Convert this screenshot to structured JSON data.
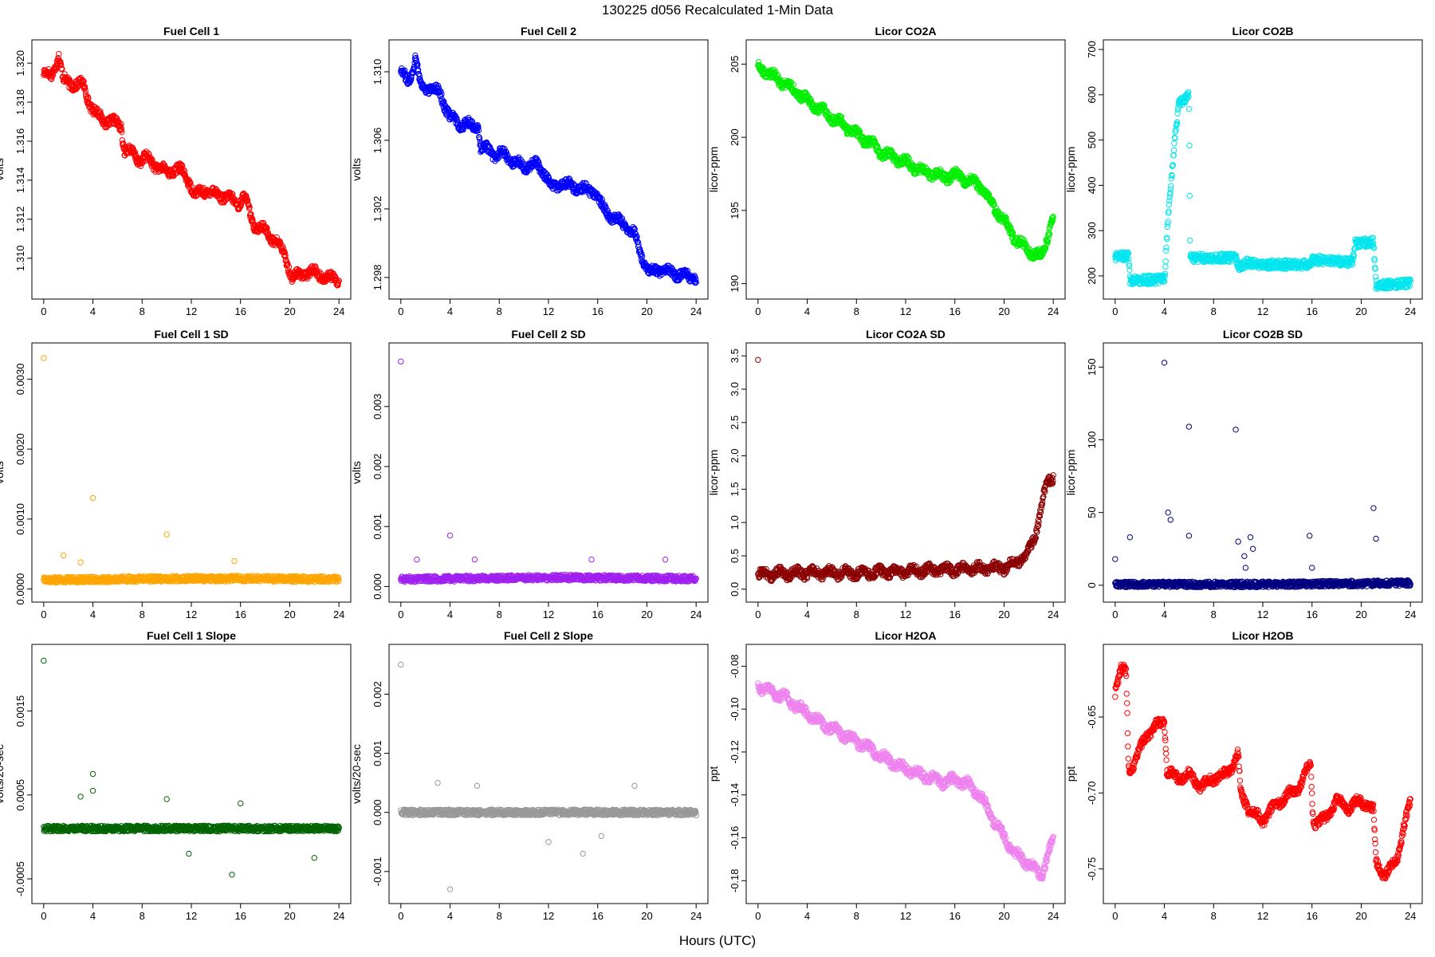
{
  "page": {
    "title": "130225   d056   Recalculated 1-Min Data",
    "xlabel": "Hours (UTC)"
  },
  "chart_data": [
    {
      "type": "scatter",
      "title": "Fuel Cell 1",
      "ylabel": "volts",
      "color": "#ff0000",
      "xlim": [
        0,
        24
      ],
      "ylim": [
        1.3084,
        1.3207
      ],
      "xticks": [
        "0",
        "4",
        "8",
        "12",
        "16",
        "20",
        "24"
      ],
      "yticks": [
        "1.310",
        "1.312",
        "1.314",
        "1.316",
        "1.318",
        "1.320"
      ],
      "series": [
        {
          "name": "trend",
          "x": [
            0,
            0.6,
            1.0,
            1.2,
            1.6,
            2.5,
            3.2,
            3.6,
            4.0,
            4.8,
            5.5,
            6.3,
            6.5,
            7.0,
            7.8,
            8.2,
            9.0,
            10.0,
            11.0,
            11.8,
            12.3,
            13.0,
            14.0,
            15.0,
            15.8,
            16.3,
            17.0,
            18.0,
            19.0,
            19.7,
            20.2,
            21.0,
            22.0,
            23.0,
            24.0
          ],
          "y": [
            1.3195,
            1.3193,
            1.32,
            1.3205,
            1.3191,
            1.3189,
            1.3189,
            1.3182,
            1.3176,
            1.3171,
            1.317,
            1.3168,
            1.3156,
            1.3155,
            1.315,
            1.3152,
            1.3148,
            1.3144,
            1.3146,
            1.314,
            1.3132,
            1.3135,
            1.3133,
            1.3131,
            1.3128,
            1.3132,
            1.3118,
            1.3114,
            1.3108,
            1.31,
            1.309,
            1.3092,
            1.3093,
            1.309,
            1.3089
          ]
        }
      ]
    },
    {
      "type": "scatter",
      "title": "Fuel Cell 2",
      "ylabel": "volts",
      "color": "#0000ff",
      "xlim": [
        0,
        24
      ],
      "ylim": [
        1.2973,
        1.3113
      ],
      "xticks": [
        "0",
        "4",
        "8",
        "12",
        "16",
        "20",
        "24"
      ],
      "yticks": [
        "1.298",
        "1.302",
        "1.306",
        "1.310"
      ],
      "series": [
        {
          "name": "trend",
          "x": [
            0,
            0.6,
            1.0,
            1.2,
            1.6,
            2.5,
            3.2,
            3.6,
            4.0,
            4.8,
            5.5,
            6.3,
            6.5,
            7.0,
            7.8,
            8.2,
            9.0,
            10.0,
            11.0,
            11.8,
            12.3,
            13.0,
            14.0,
            15.0,
            15.8,
            16.3,
            17.0,
            18.0,
            19.0,
            19.7,
            20.2,
            21.0,
            22.0,
            23.0,
            24.0
          ],
          "y": [
            1.31,
            1.3095,
            1.3102,
            1.3108,
            1.3092,
            1.309,
            1.3088,
            1.308,
            1.3073,
            1.307,
            1.3069,
            1.3068,
            1.3055,
            1.3055,
            1.3051,
            1.3053,
            1.3048,
            1.3045,
            1.3046,
            1.304,
            1.3032,
            1.3035,
            1.3033,
            1.3031,
            1.303,
            1.3022,
            1.3016,
            1.3012,
            1.3005,
            1.299,
            1.2983,
            1.2985,
            1.2983,
            1.2981,
            1.298
          ]
        }
      ]
    },
    {
      "type": "scatter",
      "title": "Licor CO2A",
      "ylabel": "licor-ppm",
      "color": "#00ee00",
      "xlim": [
        0,
        24
      ],
      "ylim": [
        189.6,
        206.0
      ],
      "xticks": [
        "0",
        "4",
        "8",
        "12",
        "16",
        "20",
        "24"
      ],
      "yticks": [
        "190",
        "195",
        "200",
        "205"
      ],
      "series": [
        {
          "name": "trend",
          "x": [
            0,
            1.0,
            2.0,
            3.0,
            4.0,
            5.0,
            6.0,
            7.0,
            8.0,
            9.0,
            10.0,
            11.0,
            12.0,
            13.0,
            14.0,
            15.0,
            16.0,
            17.0,
            18.0,
            19.0,
            20.0,
            21.0,
            22.0,
            23.0,
            24.0
          ],
          "y": [
            204.8,
            204.3,
            203.8,
            203.2,
            202.5,
            201.9,
            201.4,
            200.8,
            200.2,
            199.7,
            199.0,
            198.6,
            198.3,
            197.8,
            197.6,
            197.3,
            197.4,
            197.1,
            196.7,
            195.5,
            194.3,
            193.0,
            192.3,
            191.8,
            194.5
          ]
        }
      ]
    },
    {
      "type": "scatter",
      "title": "Licor CO2B",
      "ylabel": "licor-ppm",
      "color": "#00e5ee",
      "xlim": [
        0,
        24
      ],
      "ylim": [
        170,
        700
      ],
      "xticks": [
        "0",
        "4",
        "8",
        "12",
        "16",
        "20",
        "24"
      ],
      "yticks": [
        "200",
        "300",
        "400",
        "500",
        "600",
        "700"
      ],
      "series": [
        {
          "name": "step",
          "x": [
            0,
            1.1,
            1.2,
            4.0,
            4.1,
            4.3,
            4.6,
            4.9,
            5.2,
            6.0,
            6.1,
            7.0,
            9.8,
            10.0,
            10.8,
            12.0,
            15.8,
            16.0,
            17.0,
            19.3,
            19.5,
            21.0,
            21.2,
            24.0
          ],
          "y": [
            242,
            245,
            190,
            192,
            230,
            330,
            420,
            520,
            580,
            600,
            240,
            240,
            240,
            220,
            230,
            225,
            225,
            235,
            235,
            230,
            272,
            275,
            180,
            183
          ]
        }
      ]
    },
    {
      "type": "scatter",
      "title": "Fuel Cell 1 SD",
      "ylabel": "volts",
      "color": "#ffa500",
      "xlim": [
        0,
        24
      ],
      "ylim": [
        -5e-05,
        0.00338
      ],
      "xticks": [
        "0",
        "4",
        "8",
        "12",
        "16",
        "20",
        "24"
      ],
      "yticks": [
        "0.0000",
        "0.0010",
        "0.0020",
        "0.0030"
      ],
      "series": [
        {
          "name": "baseline",
          "x": [
            0,
            12,
            24
          ],
          "y": [
            0.00013,
            0.00015,
            0.00014
          ]
        },
        {
          "name": "outliers",
          "x": [
            0.0,
            1.6,
            3.0,
            4.0,
            10.0,
            15.5
          ],
          "y": [
            0.0033,
            0.00048,
            0.00038,
            0.0013,
            0.00078,
            0.0004
          ]
        }
      ]
    },
    {
      "type": "scatter",
      "title": "Fuel Cell 2 SD",
      "ylabel": "volts",
      "color": "#a020f0",
      "xlim": [
        0,
        24
      ],
      "ylim": [
        -0.0001,
        0.0039
      ],
      "xticks": [
        "0",
        "4",
        "8",
        "12",
        "16",
        "20",
        "24"
      ],
      "yticks": [
        "0.000",
        "0.001",
        "0.002",
        "0.003"
      ],
      "series": [
        {
          "name": "baseline",
          "x": [
            0,
            12,
            24
          ],
          "y": [
            0.00012,
            0.00015,
            0.00013
          ]
        },
        {
          "name": "outliers",
          "x": [
            0.0,
            1.3,
            4.0,
            6.0,
            15.5,
            21.5
          ],
          "y": [
            0.00375,
            0.00045,
            0.00085,
            0.00045,
            0.00045,
            0.00045
          ]
        }
      ]
    },
    {
      "type": "scatter",
      "title": "Licor CO2A SD",
      "ylabel": "licor-ppm",
      "color": "#8b0000",
      "xlim": [
        0,
        24
      ],
      "ylim": [
        -0.05,
        3.55
      ],
      "xticks": [
        "0",
        "4",
        "8",
        "12",
        "16",
        "20",
        "24"
      ],
      "yticks": [
        "0.0",
        "0.5",
        "1.0",
        "1.5",
        "2.0",
        "2.5",
        "3.0",
        "3.5"
      ],
      "series": [
        {
          "name": "trend",
          "x": [
            0,
            4,
            8,
            12,
            16,
            20,
            21,
            22,
            22.5,
            23,
            23.5,
            24
          ],
          "y": [
            0.22,
            0.25,
            0.24,
            0.27,
            0.3,
            0.32,
            0.4,
            0.55,
            0.8,
            1.2,
            1.6,
            1.7
          ]
        },
        {
          "name": "outliers",
          "x": [
            0.0
          ],
          "y": [
            3.44
          ]
        }
      ]
    },
    {
      "type": "scatter",
      "title": "Licor CO2B SD",
      "ylabel": "licor-ppm",
      "color": "#000080",
      "xlim": [
        0,
        24
      ],
      "ylim": [
        -5,
        160
      ],
      "xticks": [
        "0",
        "4",
        "8",
        "12",
        "16",
        "20",
        "24"
      ],
      "yticks": [
        "0",
        "50",
        "100",
        "150"
      ],
      "series": [
        {
          "name": "baseline",
          "x": [
            0,
            12,
            24
          ],
          "y": [
            0.5,
            0.6,
            1.5
          ]
        },
        {
          "name": "outliers",
          "x": [
            0.0,
            1.2,
            4.0,
            4.3,
            4.5,
            6.0,
            6.0,
            9.8,
            10.0,
            10.5,
            10.6,
            11.0,
            11.2,
            15.8,
            16.0,
            21.0,
            21.2
          ],
          "y": [
            18,
            33,
            153,
            50,
            45,
            109,
            34,
            107,
            30,
            20,
            12,
            33,
            25,
            34,
            12,
            53,
            32
          ]
        }
      ]
    },
    {
      "type": "scatter",
      "title": "Fuel Cell 1 Slope",
      "ylabel": "volts/20-sec",
      "color": "#006400",
      "xlim": [
        0,
        24
      ],
      "ylim": [
        -0.00068,
        0.00218
      ],
      "xticks": [
        "0",
        "4",
        "8",
        "12",
        "16",
        "20",
        "24"
      ],
      "yticks": [
        "-0.0005",
        "0.0005",
        "0.0015"
      ],
      "series": [
        {
          "name": "baseline",
          "x": [
            0,
            12,
            24
          ],
          "y": [
            0.0001,
            0.0001,
            0.0001
          ]
        },
        {
          "name": "outliers",
          "x": [
            0.0,
            3.0,
            4.0,
            4.0,
            10.0,
            11.8,
            15.3,
            16.0,
            22.0
          ],
          "y": [
            0.0021,
            0.00048,
            0.00075,
            0.00055,
            0.00045,
            -0.0002,
            -0.00045,
            0.0004,
            -0.00025
          ]
        }
      ]
    },
    {
      "type": "scatter",
      "title": "Fuel Cell 2 Slope",
      "ylabel": "volts/20-sec",
      "color": "#999999",
      "xlim": [
        0,
        24
      ],
      "ylim": [
        -0.00138,
        0.00268
      ],
      "xticks": [
        "0",
        "4",
        "8",
        "12",
        "16",
        "20",
        "24"
      ],
      "yticks": [
        "-0.001",
        "0.000",
        "0.001",
        "0.002"
      ],
      "series": [
        {
          "name": "baseline",
          "x": [
            0,
            12,
            24
          ],
          "y": [
            0.0,
            0.0,
            0.0
          ]
        },
        {
          "name": "outliers",
          "x": [
            0.0,
            3.0,
            4.0,
            6.2,
            12.0,
            14.8,
            16.3,
            19.0
          ],
          "y": [
            0.0025,
            0.0005,
            -0.0013,
            0.00045,
            -0.0005,
            -0.0007,
            -0.0004,
            0.00045
          ]
        }
      ]
    },
    {
      "type": "scatter",
      "title": "Licor H2OA",
      "ylabel": "ppt",
      "color": "#ee82ee",
      "xlim": [
        0,
        24
      ],
      "ylim": [
        -0.1862,
        -0.0743
      ],
      "xticks": [
        "0",
        "4",
        "8",
        "12",
        "16",
        "20",
        "24"
      ],
      "yticks": [
        "-0.18",
        "-0.16",
        "-0.14",
        "-0.12",
        "-0.10",
        "-0.08"
      ],
      "series": [
        {
          "name": "trend",
          "x": [
            0,
            1.0,
            2.0,
            3.0,
            4.0,
            5.0,
            6.0,
            7.0,
            8.0,
            9.0,
            10.0,
            11.0,
            12.0,
            13.0,
            14.0,
            15.0,
            16.0,
            17.0,
            18.0,
            19.0,
            20.0,
            21.0,
            22.0,
            23.0,
            24.0
          ],
          "y": [
            -0.089,
            -0.092,
            -0.094,
            -0.098,
            -0.102,
            -0.106,
            -0.109,
            -0.112,
            -0.115,
            -0.118,
            -0.122,
            -0.125,
            -0.128,
            -0.13,
            -0.132,
            -0.134,
            -0.133,
            -0.135,
            -0.14,
            -0.15,
            -0.16,
            -0.168,
            -0.172,
            -0.178,
            -0.16
          ]
        }
      ]
    },
    {
      "type": "scatter",
      "title": "Licor H2OB",
      "ylabel": "ppt",
      "color": "#ff0000",
      "xlim": [
        0,
        24
      ],
      "ylim": [
        -0.7665,
        -0.6085
      ],
      "xticks": [
        "0",
        "4",
        "8",
        "12",
        "16",
        "20",
        "24"
      ],
      "yticks": [
        "-0.75",
        "-0.70",
        "-0.65"
      ],
      "series": [
        {
          "name": "trend",
          "x": [
            0,
            0.5,
            0.9,
            1.1,
            1.6,
            2.5,
            3.2,
            4.0,
            4.2,
            5.0,
            6.0,
            7.0,
            8.0,
            9.0,
            10.0,
            10.2,
            11.0,
            12.0,
            13.0,
            14.0,
            15.0,
            15.9,
            16.1,
            17.0,
            18.0,
            19.0,
            20.0,
            21.0,
            21.2,
            22.0,
            23.0,
            24.0
          ],
          "y": [
            -0.632,
            -0.618,
            -0.622,
            -0.685,
            -0.68,
            -0.662,
            -0.657,
            -0.652,
            -0.685,
            -0.69,
            -0.688,
            -0.696,
            -0.69,
            -0.688,
            -0.675,
            -0.7,
            -0.712,
            -0.718,
            -0.708,
            -0.702,
            -0.695,
            -0.68,
            -0.72,
            -0.718,
            -0.705,
            -0.71,
            -0.705,
            -0.712,
            -0.745,
            -0.755,
            -0.74,
            -0.705
          ]
        }
      ]
    }
  ]
}
